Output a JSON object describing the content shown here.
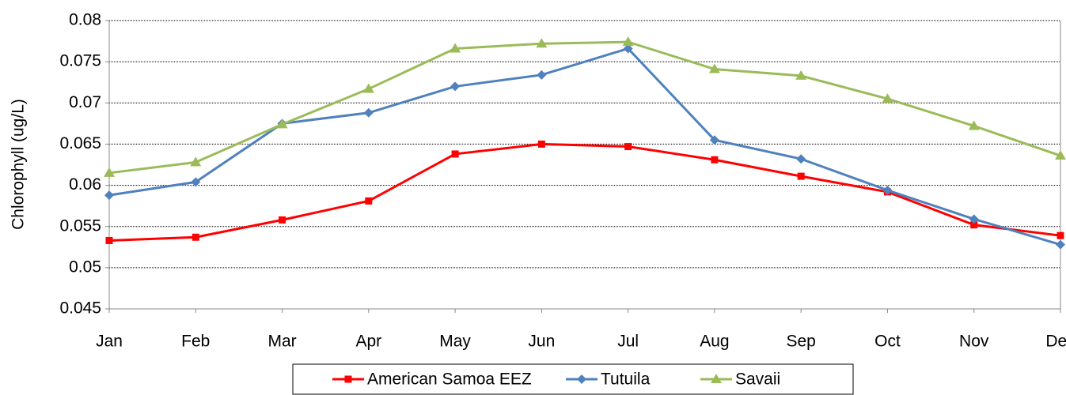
{
  "chart_data": {
    "type": "line",
    "y_label": "Chlorophyll (ug/L)",
    "categories": [
      "Jan",
      "Feb",
      "Mar",
      "Apr",
      "May",
      "Jun",
      "Jul",
      "Aug",
      "Sep",
      "Oct",
      "Nov",
      "Dec"
    ],
    "series": [
      {
        "name": "American Samoa EEZ",
        "color": "#ff0000",
        "marker": "square",
        "values": [
          0.0533,
          0.0537,
          0.0558,
          0.0581,
          0.0638,
          0.065,
          0.0647,
          0.0631,
          0.0611,
          0.0592,
          0.0552,
          0.0539
        ]
      },
      {
        "name": "Tutuila",
        "color": "#4f81bd",
        "marker": "diamond",
        "values": [
          0.0588,
          0.0604,
          0.0675,
          0.0688,
          0.072,
          0.0734,
          0.0766,
          0.0655,
          0.0632,
          0.0594,
          0.0559,
          0.0528
        ]
      },
      {
        "name": "Savaii",
        "color": "#9bbb59",
        "marker": "triangle",
        "values": [
          0.0615,
          0.0628,
          0.0674,
          0.0717,
          0.0766,
          0.0772,
          0.0774,
          0.0741,
          0.0733,
          0.0705,
          0.0672,
          0.0636
        ]
      }
    ],
    "ylim": [
      0.045,
      0.08
    ],
    "yticks": [
      0.045,
      0.05,
      0.055,
      0.06,
      0.065,
      0.07,
      0.075,
      0.08
    ],
    "grid": true,
    "legend": "bottom"
  }
}
